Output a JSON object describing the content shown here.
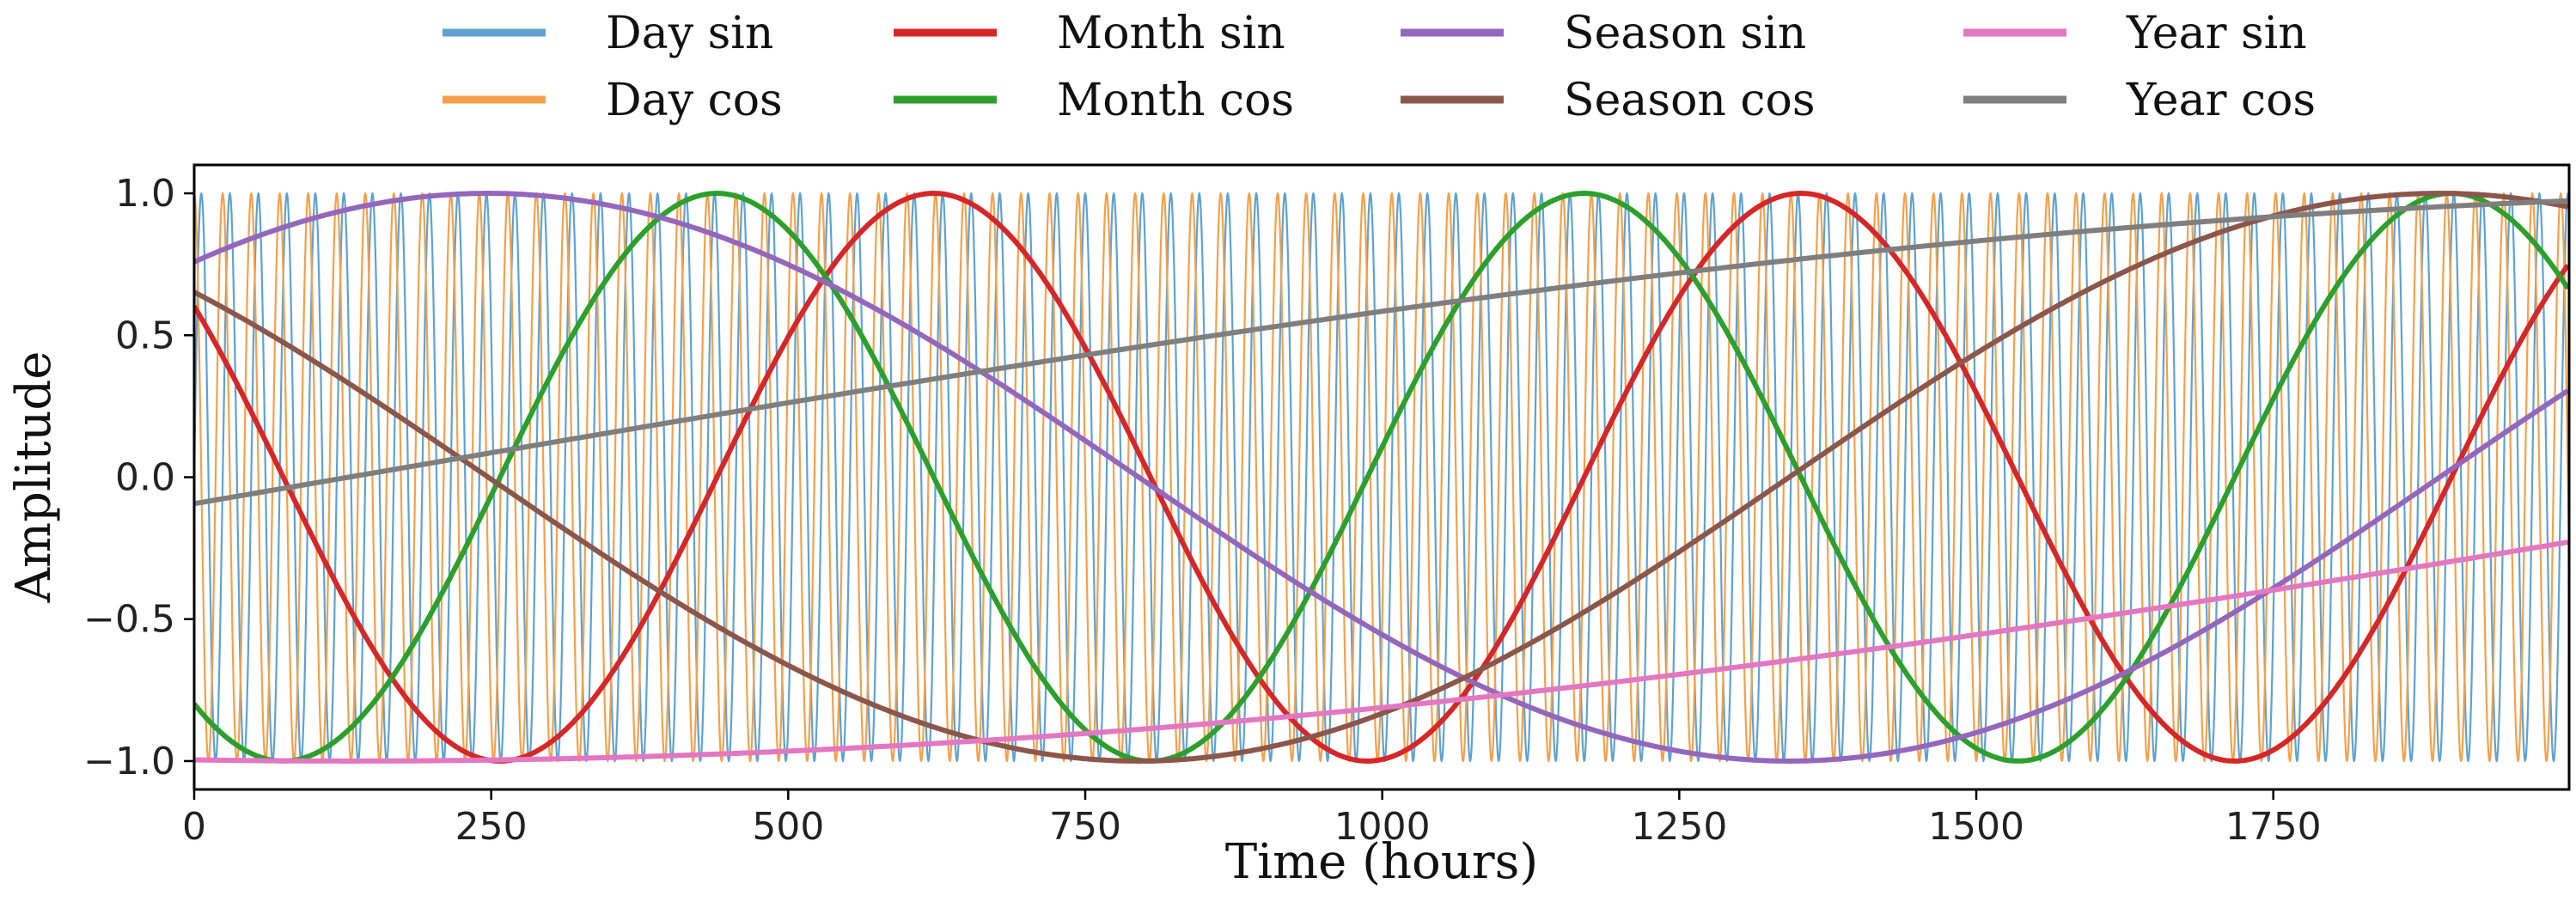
{
  "chart_data": {
    "type": "line",
    "title": "",
    "xlabel": "Time (hours)",
    "ylabel": "Amplitude",
    "xlim": [
      0,
      1999
    ],
    "ylim": [
      -1.1,
      1.1
    ],
    "x_ticks": [
      0,
      250,
      500,
      750,
      1000,
      1250,
      1500,
      1750
    ],
    "x_tick_labels": [
      "0",
      "250",
      "500",
      "750",
      "1000",
      "1250",
      "1500",
      "1750"
    ],
    "y_ticks": [
      1.0,
      0.5,
      0.0,
      -0.5,
      -1.0
    ],
    "y_tick_labels": [
      "1.0",
      "0.5",
      "0.0",
      "−0.5",
      "−1.0"
    ],
    "grid": false,
    "legend_position": "top, above plot, 4 columns",
    "x_range": [
      0,
      1999
    ],
    "series": [
      {
        "name": "Day sin",
        "color": "#5fa2d0",
        "period_hours": 24,
        "phase_hours": 0,
        "func": "sin"
      },
      {
        "name": "Day cos",
        "color": "#f5a04a",
        "period_hours": 24,
        "phase_hours": 0,
        "func": "cos"
      },
      {
        "name": "Month sin",
        "color": "#d62728",
        "period_hours": 730,
        "phase_hours": -1750,
        "func": "sin"
      },
      {
        "name": "Month cos",
        "color": "#2ca02c",
        "period_hours": 730,
        "phase_hours": -1750,
        "func": "cos"
      },
      {
        "name": "Season sin",
        "color": "#9467bd",
        "period_hours": 2190,
        "phase_hours": -4680,
        "func": "sin"
      },
      {
        "name": "Season cos",
        "color": "#8c564b",
        "period_hours": 2190,
        "phase_hours": -4680,
        "func": "cos"
      },
      {
        "name": "Year sin",
        "color": "#e377c2",
        "period_hours": 8760,
        "phase_hours": -6440,
        "func": "sin"
      },
      {
        "name": "Year cos",
        "color": "#7f7f7f",
        "period_hours": 8760,
        "phase_hours": -6440,
        "func": "cos"
      }
    ]
  }
}
